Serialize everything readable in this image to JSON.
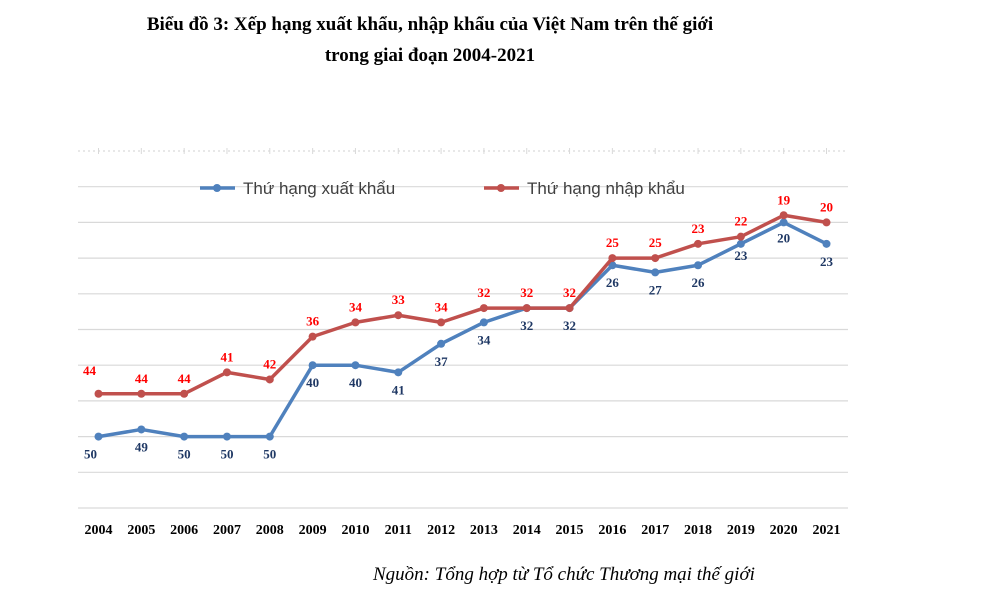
{
  "title_line1": "Biểu đồ 3: Xếp hạng xuất khẩu, nhập khẩu của Việt Nam trên thế giới",
  "title_line2": "trong giai đoạn 2004-2021",
  "source": "Nguồn: Tổng hợp từ Tổ chức Thương mại thế  giới",
  "chart_data": {
    "type": "line",
    "title": "Biểu đồ 3: Xếp hạng xuất khẩu, nhập khẩu của Việt Nam trên thế giới trong giai đoạn 2004-2021",
    "x": [
      "2004",
      "2005",
      "2006",
      "2007",
      "2008",
      "2009",
      "2010",
      "2011",
      "2012",
      "2013",
      "2014",
      "2015",
      "2016",
      "2017",
      "2018",
      "2019",
      "2020",
      "2021"
    ],
    "series": [
      {
        "name": "Thứ hạng xuất khẩu",
        "color": "#4f81bd",
        "values": [
          50,
          49,
          50,
          50,
          50,
          40,
          40,
          41,
          37,
          34,
          32,
          32,
          26,
          27,
          26,
          23,
          20,
          23
        ]
      },
      {
        "name": "Thứ hạng nhập khẩu",
        "color": "#c0504d",
        "values": [
          44,
          44,
          44,
          41,
          42,
          36,
          34,
          33,
          34,
          32,
          32,
          32,
          25,
          25,
          23,
          22,
          19,
          20
        ]
      }
    ],
    "label_colors": {
      "export": "#1f3864",
      "import": "#ff0000"
    },
    "y_inverted": true,
    "ylim": [
      60,
      10
    ],
    "grid": true,
    "legend": "top-left"
  }
}
